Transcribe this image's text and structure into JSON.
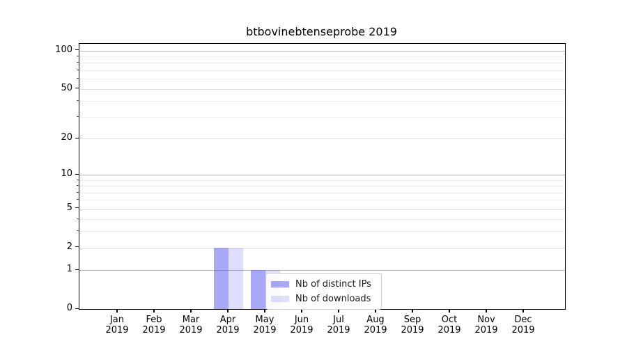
{
  "figure_title": "btbovinebtenseprobe 2019",
  "chart_data": {
    "type": "bar",
    "title": "btbovinebtenseprobe 2019",
    "xlabel": "",
    "ylabel": "",
    "categories": [
      {
        "month": "Jan",
        "year": "2019"
      },
      {
        "month": "Feb",
        "year": "2019"
      },
      {
        "month": "Mar",
        "year": "2019"
      },
      {
        "month": "Apr",
        "year": "2019"
      },
      {
        "month": "May",
        "year": "2019"
      },
      {
        "month": "Jun",
        "year": "2019"
      },
      {
        "month": "Jul",
        "year": "2019"
      },
      {
        "month": "Aug",
        "year": "2019"
      },
      {
        "month": "Sep",
        "year": "2019"
      },
      {
        "month": "Oct",
        "year": "2019"
      },
      {
        "month": "Nov",
        "year": "2019"
      },
      {
        "month": "Dec",
        "year": "2019"
      }
    ],
    "series": [
      {
        "name": "Nb of distinct IPs",
        "color": "rgba(88,88,240,0.52)",
        "values": [
          0,
          0,
          0,
          2,
          1,
          0,
          0,
          0,
          0,
          0,
          0,
          0
        ]
      },
      {
        "name": "Nb of downloads",
        "color": "rgba(88,88,240,0.20)",
        "values": [
          0,
          0,
          0,
          2,
          1,
          0,
          0,
          0,
          0,
          0,
          0,
          0
        ]
      }
    ],
    "y_axis": {
      "scale": "log1p",
      "ticks": [
        0,
        1,
        2,
        5,
        10,
        20,
        50,
        100
      ],
      "minor_ticks": [
        3,
        4,
        6,
        7,
        8,
        9,
        30,
        40,
        60,
        70,
        80,
        90
      ],
      "ylim": [
        0,
        112.8
      ],
      "grid": true
    },
    "legend": {
      "location": "inside-lower-center",
      "entries": [
        "Nb of distinct IPs",
        "Nb of downloads"
      ]
    }
  }
}
